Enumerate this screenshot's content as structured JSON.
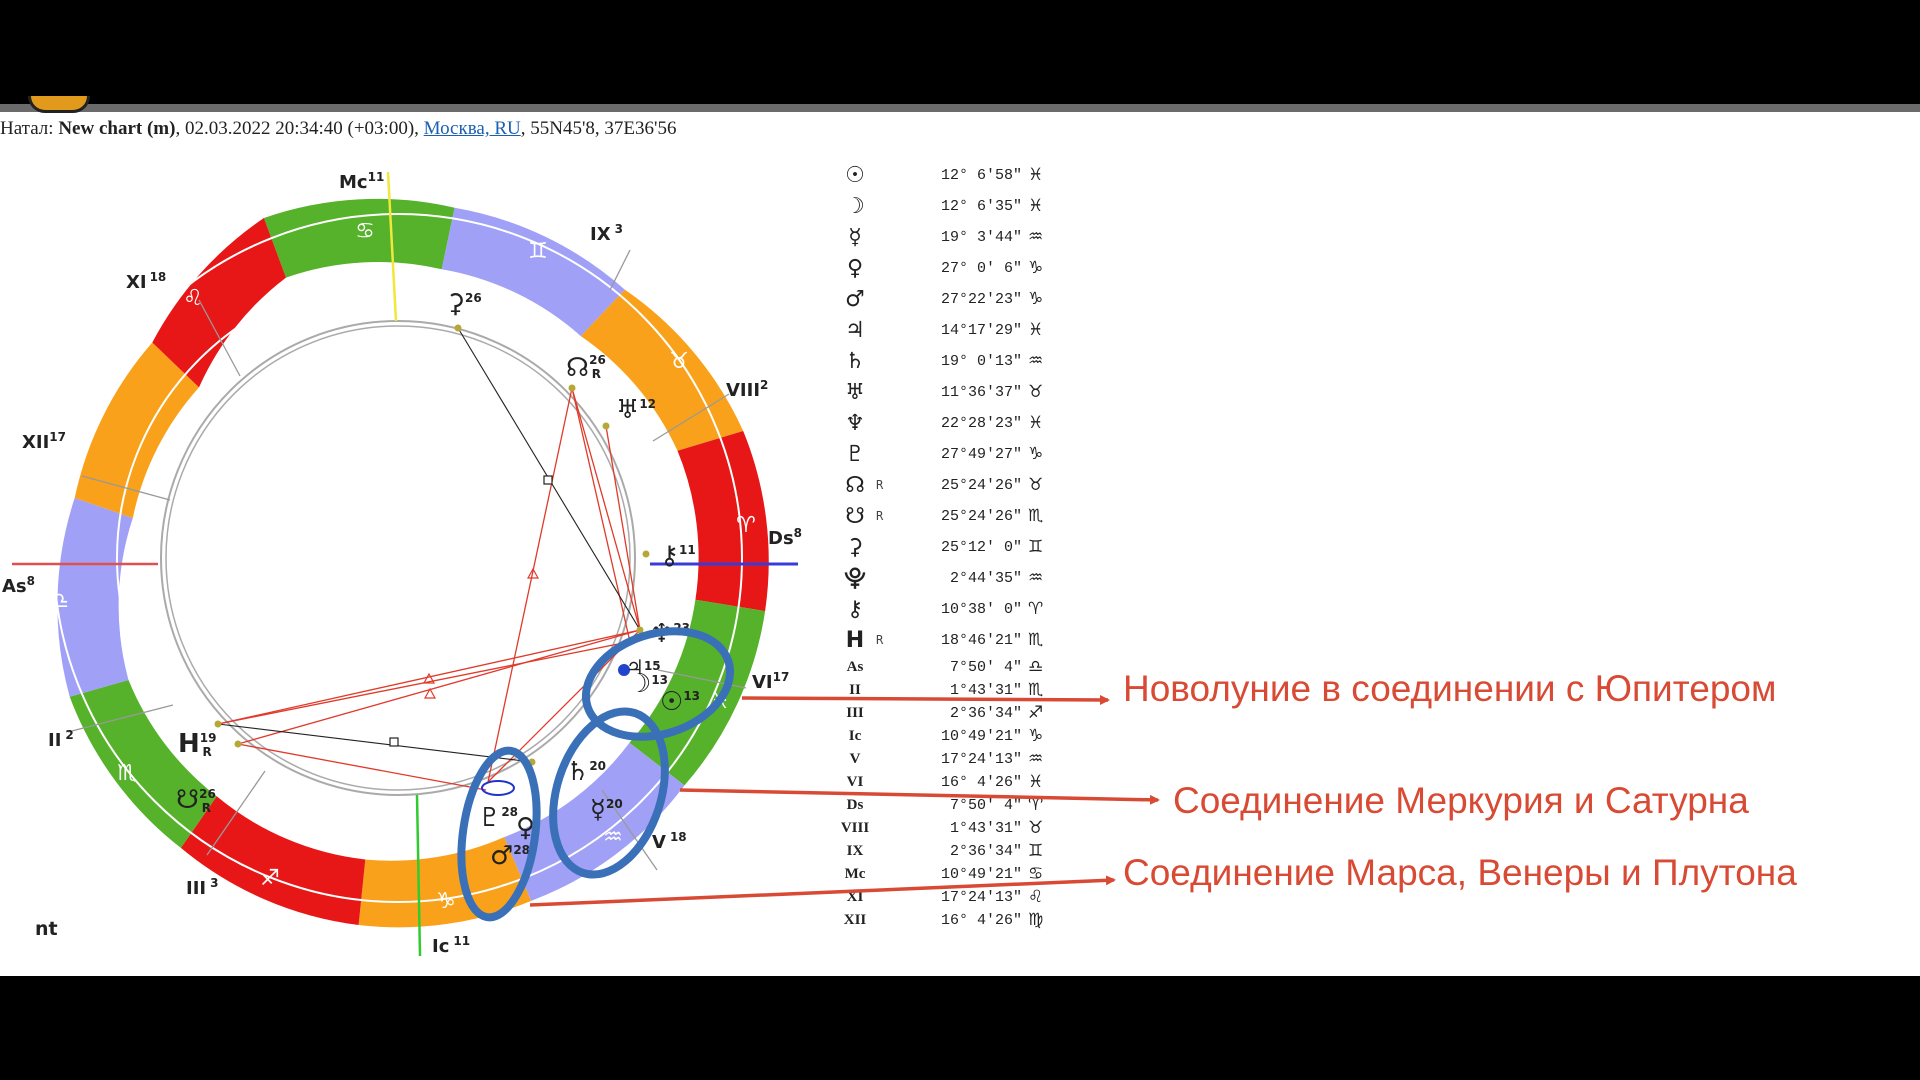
{
  "header": {
    "prefix": "Натал:",
    "chart_name": "New chart (m)",
    "datetime": ", 02.03.2022 20:34:40 (+03:00), ",
    "place_link": "Москва, RU",
    "coords": ", 55N45'8, 37E36'56"
  },
  "wheel": {
    "houses": [
      {
        "label": "Mc",
        "num": "11"
      },
      {
        "label": "IX",
        "num": "3"
      },
      {
        "label": "XI",
        "num": "18"
      },
      {
        "label": "VIII",
        "num": "2"
      },
      {
        "label": "XII",
        "num": "17"
      },
      {
        "label": "Ds",
        "num": "8"
      },
      {
        "label": "As",
        "num": "8"
      },
      {
        "label": "VI",
        "num": "17"
      },
      {
        "label": "II",
        "num": "2"
      },
      {
        "label": "V",
        "num": "18"
      },
      {
        "label": "III",
        "num": "3"
      },
      {
        "label": "Ic",
        "num": "11"
      }
    ],
    "planets": [
      {
        "glyph": "⚳",
        "num": "26",
        "r": ""
      },
      {
        "glyph": "☊",
        "num": "26",
        "r": "R"
      },
      {
        "glyph": "♅",
        "num": "12",
        "r": ""
      },
      {
        "glyph": "⚷",
        "num": "11",
        "r": ""
      },
      {
        "glyph": "♆",
        "num": "23",
        "r": ""
      },
      {
        "glyph": "♃",
        "num": "15",
        "r": ""
      },
      {
        "glyph": "☽",
        "num": "13",
        "r": ""
      },
      {
        "glyph": "☉",
        "num": "13",
        "r": ""
      },
      {
        "glyph": "♄",
        "num": "20",
        "r": ""
      },
      {
        "glyph": "☿",
        "num": "20",
        "r": ""
      },
      {
        "glyph": "♇",
        "num": "28",
        "r": ""
      },
      {
        "glyph": "♀",
        "num": "28",
        "r": ""
      },
      {
        "glyph": "♂",
        "num": "28",
        "r": ""
      },
      {
        "glyph": "H",
        "num": "19",
        "r": "R"
      },
      {
        "glyph": "☋",
        "num": "26",
        "r": "R"
      }
    ],
    "footer_text": "nt"
  },
  "positions": [
    {
      "symbol": "☉",
      "retro": "",
      "degree": "12° 6'58\"",
      "sign": "♓"
    },
    {
      "symbol": "☽",
      "retro": "",
      "degree": "12° 6'35\"",
      "sign": "♓"
    },
    {
      "symbol": "☿",
      "retro": "",
      "degree": "19° 3'44\"",
      "sign": "♒"
    },
    {
      "symbol": "♀",
      "retro": "",
      "degree": "27° 0' 6\"",
      "sign": "♑"
    },
    {
      "symbol": "♂",
      "retro": "",
      "degree": "27°22'23\"",
      "sign": "♑"
    },
    {
      "symbol": "♃",
      "retro": "",
      "degree": "14°17'29\"",
      "sign": "♓"
    },
    {
      "symbol": "♄",
      "retro": "",
      "degree": "19° 0'13\"",
      "sign": "♒"
    },
    {
      "symbol": "♅",
      "retro": "",
      "degree": "11°36'37\"",
      "sign": "♉"
    },
    {
      "symbol": "♆",
      "retro": "",
      "degree": "22°28'23\"",
      "sign": "♓"
    },
    {
      "symbol": "♇",
      "retro": "",
      "degree": "27°49'27\"",
      "sign": "♑"
    },
    {
      "symbol": "☊",
      "retro": "R",
      "degree": "25°24'26\"",
      "sign": "♉"
    },
    {
      "symbol": "☋",
      "retro": "R",
      "degree": "25°24'26\"",
      "sign": "♏"
    },
    {
      "symbol": "⚳",
      "retro": "",
      "degree": "25°12' 0\"",
      "sign": "♊"
    },
    {
      "symbol": "⯓",
      "retro": "",
      "degree": "2°44'35\"",
      "sign": "♒"
    },
    {
      "symbol": "⚷",
      "retro": "",
      "degree": "10°38' 0\"",
      "sign": "♈"
    },
    {
      "symbol": "H",
      "retro": "R",
      "degree": "18°46'21\"",
      "sign": "♏"
    },
    {
      "symbol": "As",
      "retro": "",
      "degree": "7°50' 4\"",
      "sign": "♎"
    },
    {
      "symbol": "II",
      "retro": "",
      "degree": "1°43'31\"",
      "sign": "♏"
    },
    {
      "symbol": "III",
      "retro": "",
      "degree": "2°36'34\"",
      "sign": "♐"
    },
    {
      "symbol": "Ic",
      "retro": "",
      "degree": "10°49'21\"",
      "sign": "♑"
    },
    {
      "symbol": "V",
      "retro": "",
      "degree": "17°24'13\"",
      "sign": "♒"
    },
    {
      "symbol": "VI",
      "retro": "",
      "degree": "16° 4'26\"",
      "sign": "♓"
    },
    {
      "symbol": "Ds",
      "retro": "",
      "degree": "7°50' 4\"",
      "sign": "♈"
    },
    {
      "symbol": "VIII",
      "retro": "",
      "degree": "1°43'31\"",
      "sign": "♉"
    },
    {
      "symbol": "IX",
      "retro": "",
      "degree": "2°36'34\"",
      "sign": "♊"
    },
    {
      "symbol": "Mc",
      "retro": "",
      "degree": "10°49'21\"",
      "sign": "♋"
    },
    {
      "symbol": "XI",
      "retro": "",
      "degree": "17°24'13\"",
      "sign": "♌"
    },
    {
      "symbol": "XII",
      "retro": "",
      "degree": "16° 4'26\"",
      "sign": "♍"
    }
  ],
  "annotations": [
    {
      "text": "Новолуние в соединении с Юпитером"
    },
    {
      "text": "Соединение Меркурия и Сатурна"
    },
    {
      "text": "Соединение Марса, Венеры и Плутона"
    }
  ],
  "colors": {
    "fire": "#e81717",
    "earth": "#f9a11b",
    "air": "#a0a0f7",
    "water": "#55b22a",
    "aspect": "#e03a2a",
    "highlight": "#3a70b8",
    "arrow": "#d84a34"
  }
}
